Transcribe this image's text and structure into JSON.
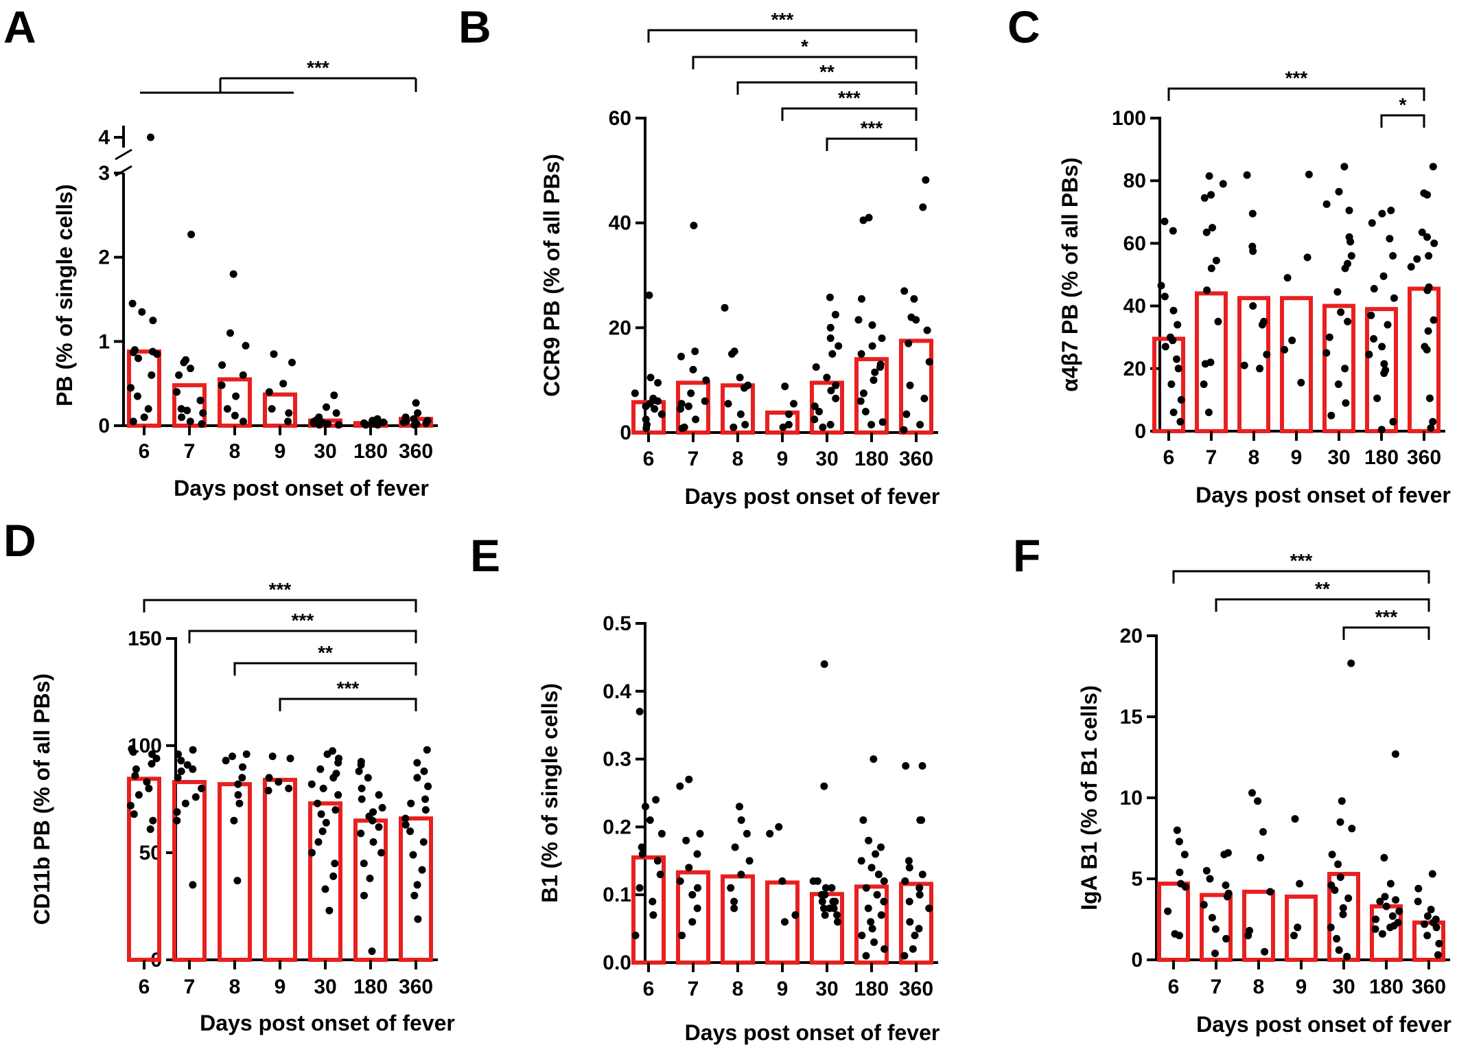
{
  "chart_data": [
    {
      "panel": "A",
      "type": "bar",
      "categories": [
        "6",
        "7",
        "8",
        "9",
        "30",
        "180",
        "360"
      ],
      "values": [
        0.88,
        0.48,
        0.55,
        0.37,
        0.06,
        0.03,
        0.08
      ],
      "points": [
        [
          3.95,
          1.45,
          1.35,
          1.25,
          0.9,
          0.88,
          0.87,
          0.85,
          0.8,
          0.6,
          0.45,
          0.35,
          0.2,
          0.1,
          0.05
        ],
        [
          2.27,
          0.78,
          0.75,
          0.68,
          0.6,
          0.4,
          0.3,
          0.2,
          0.18,
          0.15,
          0.1,
          0.05,
          0.02
        ],
        [
          1.8,
          1.1,
          0.95,
          0.72,
          0.6,
          0.48,
          0.35,
          0.2,
          0.12,
          0.05
        ],
        [
          0.85,
          0.75,
          0.5,
          0.4,
          0.2,
          0.15,
          0.05
        ],
        [
          0.36,
          0.22,
          0.15,
          0.1,
          0.07,
          0.05,
          0.04,
          0.03,
          0.02,
          0.02,
          0.01,
          0.01
        ],
        [
          0.08,
          0.06,
          0.05,
          0.04,
          0.03,
          0.03,
          0.02,
          0.02,
          0.01,
          0.01
        ],
        [
          0.27,
          0.15,
          0.1,
          0.08,
          0.06,
          0.05,
          0.04,
          0.03,
          0.02,
          0.01
        ]
      ],
      "ylabel": "PB (% of single cells)",
      "xlabel": "Days post onset of fever",
      "ylim": [
        0,
        4
      ],
      "yticks": [
        "0",
        "1",
        "2",
        "3",
        "4"
      ],
      "axis_break": [
        3,
        4
      ],
      "significance": [
        {
          "from": 0,
          "to": 6,
          "label": "***",
          "grouped_to": 3
        }
      ]
    },
    {
      "panel": "B",
      "type": "bar",
      "categories": [
        "6",
        "7",
        "8",
        "9",
        "30",
        "180",
        "360"
      ],
      "values": [
        5.8,
        9.5,
        9.0,
        3.8,
        9.5,
        14.0,
        17.5
      ],
      "points": [
        [
          26.2,
          10.5,
          9.5,
          7.5,
          6.5,
          6.2,
          6.0,
          5.5,
          5.0,
          4.5,
          3.5,
          2.5,
          1.5,
          0.8
        ],
        [
          39.5,
          15.5,
          14.5,
          12.0,
          10.0,
          7.5,
          6.0,
          5.5,
          5.0,
          4.5,
          2.5,
          1.0,
          0.8
        ],
        [
          23.8,
          15.5,
          15.0,
          10.5,
          9.0,
          8.5,
          5.5,
          3.5,
          1.5,
          1.0
        ],
        [
          8.8,
          5.5,
          3.5,
          1.5,
          1.0
        ],
        [
          25.8,
          22.5,
          20.0,
          18.0,
          16.5,
          15.0,
          12.5,
          10.5,
          9.0,
          8.0,
          6.5,
          5.0,
          4.0,
          2.5,
          1.5,
          1.0
        ],
        [
          41.0,
          40.5,
          25.5,
          21.5,
          20.5,
          18.0,
          16.5,
          15.0,
          13.0,
          12.5,
          11.5,
          10.0,
          7.5,
          6.0,
          4.0,
          2.0,
          1.5
        ],
        [
          48.2,
          43.0,
          27.0,
          25.5,
          22.0,
          21.5,
          19.5,
          17.0,
          13.5,
          9.0,
          6.5,
          3.5,
          1.5,
          0.5
        ]
      ],
      "ylabel": "CCR9 PB (% of all PBs)",
      "xlabel": "Days post onset of fever",
      "ylim": [
        0,
        60
      ],
      "yticks": [
        "0",
        "20",
        "40",
        "60"
      ],
      "significance": [
        {
          "from": 0,
          "to": 6,
          "label": "***"
        },
        {
          "from": 1,
          "to": 6,
          "label": "*"
        },
        {
          "from": 2,
          "to": 6,
          "label": "**"
        },
        {
          "from": 3,
          "to": 6,
          "label": "***"
        },
        {
          "from": 4,
          "to": 6,
          "label": "***"
        }
      ]
    },
    {
      "panel": "C",
      "type": "bar",
      "categories": [
        "6",
        "7",
        "8",
        "9",
        "30",
        "180",
        "360"
      ],
      "values": [
        29.5,
        44.0,
        42.5,
        42.5,
        40.0,
        39.0,
        45.5
      ],
      "points": [
        [
          67.0,
          64.0,
          46.5,
          43.0,
          38.5,
          34.0,
          30.0,
          29.0,
          27.0,
          23.0,
          20.0,
          15.0,
          10.0,
          6.0,
          3.0
        ],
        [
          81.5,
          79.0,
          75.5,
          74.5,
          65.0,
          63.5,
          54.5,
          52.0,
          45.0,
          35.0,
          22.0,
          21.5,
          15.0,
          6.0
        ],
        [
          81.8,
          69.5,
          59.0,
          57.5,
          40.0,
          35.0,
          34.0,
          24.5,
          21.0,
          20.0
        ],
        [
          82.0,
          55.5,
          49.0,
          29.0,
          26.0,
          15.5
        ],
        [
          84.5,
          76.5,
          72.5,
          70.5,
          62.0,
          60.5,
          56.0,
          53.5,
          52.0,
          44.5,
          38.0,
          35.0,
          30.0,
          25.0,
          20.0,
          15.0,
          9.0,
          5.0
        ],
        [
          70.5,
          69.5,
          66.5,
          61.5,
          56.0,
          49.5,
          45.5,
          42.5,
          37.0,
          34.0,
          29.5,
          27.0,
          24.5,
          21.5,
          19.5,
          18.5,
          10.5,
          3.0,
          0.5
        ],
        [
          84.5,
          76.0,
          75.5,
          63.5,
          62.0,
          60.0,
          56.0,
          55.0,
          52.5,
          46.0,
          45.0,
          35.5,
          32.0,
          27.0,
          26.0,
          10.5,
          3.0,
          1.0
        ]
      ],
      "ylabel": "α4β7 PB (% of all PBs)",
      "xlabel": "Days post onset of fever",
      "ylim": [
        0,
        100
      ],
      "yticks": [
        "0",
        "20",
        "40",
        "60",
        "80",
        "100"
      ],
      "significance": [
        {
          "from": 0,
          "to": 6,
          "label": "***"
        },
        {
          "from": 5,
          "to": 6,
          "label": "*"
        }
      ]
    },
    {
      "panel": "D",
      "type": "bar",
      "categories": [
        "6",
        "7",
        "8",
        "9",
        "30",
        "180",
        "360"
      ],
      "values": [
        84.5,
        83.0,
        82.0,
        84.0,
        73.0,
        65.0,
        66.0
      ],
      "points": [
        [
          98.5,
          97.0,
          96.0,
          94.0,
          91.5,
          89.0,
          86.0,
          83.0,
          80.0,
          77.0,
          72.0,
          68.0,
          65.0,
          61.0
        ],
        [
          98.0,
          96.0,
          93.0,
          91.0,
          89.0,
          88.0,
          85.0,
          80.0,
          76.0,
          73.0,
          69.0,
          65.0,
          35.0
        ],
        [
          96.0,
          95.0,
          93.0,
          90.0,
          85.0,
          82.0,
          77.0,
          73.0,
          65.0,
          37.0
        ],
        [
          95.0,
          94.0,
          85.0,
          83.0,
          80.0,
          79.0
        ],
        [
          97.5,
          96.0,
          94.0,
          92.0,
          89.0,
          87.0,
          85.0,
          82.0,
          80.0,
          77.0,
          73.0,
          70.0,
          68.0,
          64.0,
          60.0,
          55.0,
          50.0,
          45.0,
          39.0,
          33.0,
          23.0
        ],
        [
          92.5,
          91.0,
          88.0,
          85.0,
          80.0,
          77.0,
          75.0,
          71.0,
          69.0,
          67.0,
          65.0,
          62.0,
          59.0,
          55.0,
          50.0,
          45.0,
          38.0,
          30.0,
          4.0
        ],
        [
          98.0,
          92.0,
          88.0,
          85.0,
          81.0,
          75.0,
          73.0,
          70.0,
          66.0,
          63.0,
          60.0,
          55.0,
          49.0,
          42.0,
          35.0,
          30.0,
          19.0
        ]
      ],
      "ylabel": "CD11b PB (% of all PBs)",
      "xlabel": "Days post onset of fever",
      "ylim": [
        0,
        150
      ],
      "yticks": [
        "0",
        "50",
        "100",
        "150"
      ],
      "significance": [
        {
          "from": 0,
          "to": 6,
          "label": "***"
        },
        {
          "from": 1,
          "to": 6,
          "label": "***"
        },
        {
          "from": 2,
          "to": 6,
          "label": "**"
        },
        {
          "from": 3,
          "to": 6,
          "label": "***"
        }
      ]
    },
    {
      "panel": "E",
      "type": "bar",
      "categories": [
        "6",
        "7",
        "8",
        "9",
        "30",
        "180",
        "360"
      ],
      "values": [
        0.155,
        0.133,
        0.127,
        0.118,
        0.101,
        0.112,
        0.116
      ],
      "points": [
        [
          0.37,
          0.24,
          0.23,
          0.21,
          0.19,
          0.17,
          0.16,
          0.15,
          0.13,
          0.11,
          0.09,
          0.07,
          0.04
        ],
        [
          0.27,
          0.26,
          0.19,
          0.18,
          0.16,
          0.14,
          0.12,
          0.11,
          0.1,
          0.08,
          0.06,
          0.04
        ],
        [
          0.23,
          0.21,
          0.19,
          0.17,
          0.15,
          0.13,
          0.11,
          0.09,
          0.08
        ],
        [
          0.2,
          0.19,
          0.12,
          0.07,
          0.06
        ],
        [
          0.44,
          0.26,
          0.12,
          0.12,
          0.11,
          0.11,
          0.1,
          0.1,
          0.1,
          0.09,
          0.09,
          0.09,
          0.08,
          0.08,
          0.08,
          0.07,
          0.07,
          0.06
        ],
        [
          0.3,
          0.21,
          0.18,
          0.17,
          0.16,
          0.15,
          0.14,
          0.13,
          0.12,
          0.11,
          0.1,
          0.09,
          0.08,
          0.07,
          0.06,
          0.05,
          0.04,
          0.03,
          0.02,
          0.01
        ],
        [
          0.29,
          0.29,
          0.21,
          0.21,
          0.15,
          0.14,
          0.13,
          0.12,
          0.11,
          0.1,
          0.09,
          0.08,
          0.06,
          0.05,
          0.04,
          0.02,
          0.01
        ]
      ],
      "ylabel": "B1 (% of single cells)",
      "xlabel": "Days post onset of fever",
      "ylim": [
        0,
        0.5
      ],
      "yticks": [
        "0.0",
        "0.1",
        "0.2",
        "0.3",
        "0.4",
        "0.5"
      ],
      "significance": []
    },
    {
      "panel": "F",
      "type": "bar",
      "categories": [
        "6",
        "7",
        "8",
        "9",
        "30",
        "180",
        "360"
      ],
      "values": [
        4.7,
        4.0,
        4.2,
        3.9,
        5.3,
        3.3,
        2.3
      ],
      "points": [
        [
          8.0,
          7.3,
          6.5,
          5.4,
          4.7,
          4.5,
          3.0,
          1.6,
          1.5
        ],
        [
          6.6,
          6.5,
          5.5,
          5.0,
          4.6,
          4.1,
          3.9,
          3.4,
          2.6,
          1.9,
          1.3,
          0.4
        ],
        [
          10.3,
          9.8,
          7.9,
          6.3,
          4.2,
          1.8,
          1.5,
          0.5
        ],
        [
          8.7,
          4.7,
          2.0,
          1.5
        ],
        [
          18.3,
          9.8,
          8.5,
          8.1,
          6.5,
          5.9,
          5.1,
          4.6,
          4.3,
          3.8,
          3.2,
          2.8,
          2.0,
          1.3,
          0.6,
          0.2
        ],
        [
          12.7,
          6.3,
          4.7,
          3.9,
          3.7,
          3.6,
          3.3,
          3.0,
          2.7,
          2.5,
          2.3,
          2.1,
          2.0,
          1.9,
          1.6
        ],
        [
          5.3,
          4.4,
          3.6,
          3.1,
          2.7,
          2.5,
          2.3,
          2.2,
          2.0,
          1.5,
          1.0,
          0.3
        ]
      ],
      "ylabel": "IgA B1 (% of B1 cells)",
      "xlabel": "Days post onset of fever",
      "ylim": [
        0,
        20
      ],
      "yticks": [
        "0",
        "5",
        "10",
        "15",
        "20"
      ],
      "significance": [
        {
          "from": 0,
          "to": 6,
          "label": "***"
        },
        {
          "from": 1,
          "to": 6,
          "label": "**"
        },
        {
          "from": 4,
          "to": 6,
          "label": "***"
        }
      ]
    }
  ],
  "colors": {
    "bar_edge": "#e8201f",
    "dot": "#000000",
    "axis": "#000000"
  }
}
